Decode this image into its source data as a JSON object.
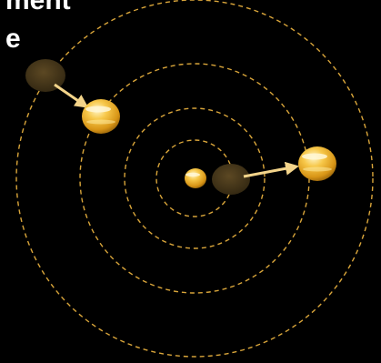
{
  "title": {
    "line_1": "ment",
    "line_2": "e"
  },
  "colors": {
    "background": "#000000",
    "orbit": "#d9a53a",
    "arrow": "#f3d48a",
    "particle_light": "#fff1b0",
    "particle_mid": "#f0b42a",
    "particle_dark": "#b37a12",
    "ghost": "#4a3a1c"
  },
  "orbits_count": 4,
  "particles": [
    {
      "name": "center-particle",
      "kind": "bright"
    },
    {
      "name": "ghost-particle-center",
      "kind": "ghost"
    },
    {
      "name": "right-particle",
      "kind": "bright"
    },
    {
      "name": "ghost-particle-upper-left",
      "kind": "ghost"
    },
    {
      "name": "upper-left-particle",
      "kind": "bright"
    }
  ]
}
